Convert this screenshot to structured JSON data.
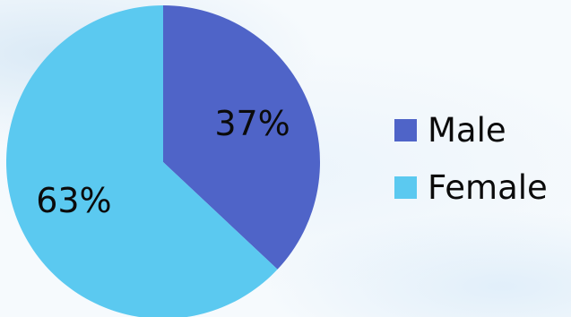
{
  "chart_data": {
    "type": "pie",
    "slices": [
      {
        "label": "Male",
        "value": 37,
        "display": "37%",
        "color": "#4f64c8"
      },
      {
        "label": "Female",
        "value": 63,
        "display": "63%",
        "color": "#5bc9f0"
      }
    ],
    "start_angle_deg": 0,
    "direction": "clockwise",
    "legend_position": "right"
  },
  "legend": {
    "items": [
      {
        "label": "Male",
        "color": "#4f64c8"
      },
      {
        "label": "Female",
        "color": "#5bc9f0"
      }
    ]
  }
}
